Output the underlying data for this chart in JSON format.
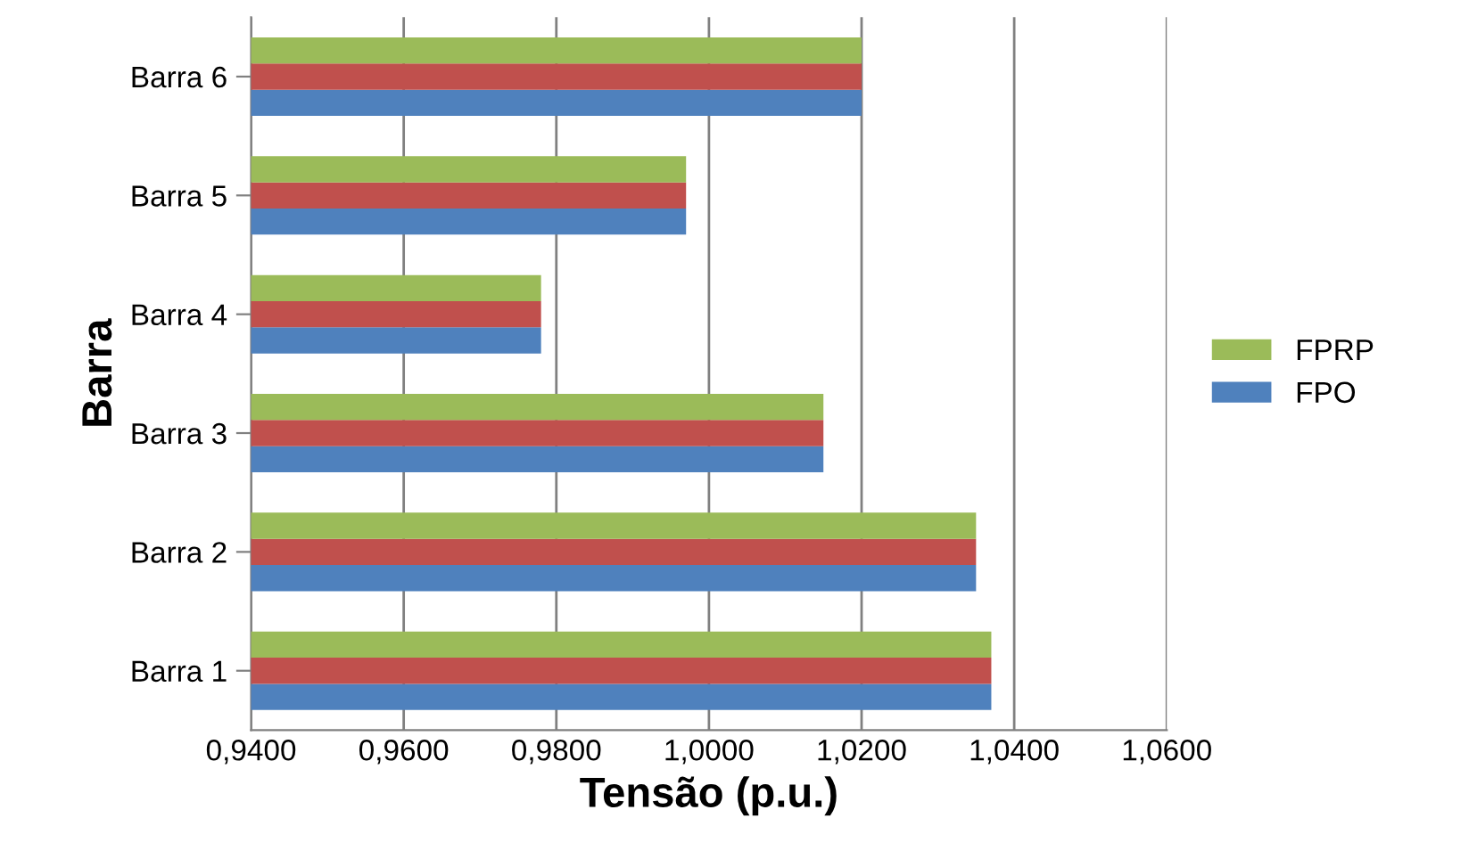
{
  "chart_data": {
    "type": "bar",
    "orientation": "horizontal",
    "xlabel": "Tensão (p.u.)",
    "ylabel": "Barra",
    "categories": [
      "Barra 6",
      "Barra 5",
      "Barra 4",
      "Barra 3",
      "Barra 2",
      "Barra 1"
    ],
    "series": [
      {
        "name": "FPO",
        "color": "#4f81bd",
        "values": [
          1.02,
          0.997,
          0.978,
          1.015,
          1.035,
          1.037
        ]
      },
      {
        "color": "#c0504d",
        "values": [
          1.02,
          0.997,
          0.978,
          1.015,
          1.035,
          1.037
        ]
      },
      {
        "name": "FPRP",
        "color": "#9bbb59",
        "values": [
          1.02,
          0.997,
          0.978,
          1.015,
          1.035,
          1.037
        ]
      }
    ],
    "xlim": [
      0.94,
      1.06
    ],
    "xticks": [
      {
        "value": 0.94,
        "label": "0,9400"
      },
      {
        "value": 0.96,
        "label": "0,9600"
      },
      {
        "value": 0.98,
        "label": "0,9800"
      },
      {
        "value": 1.0,
        "label": "1,0000"
      },
      {
        "value": 1.02,
        "label": "1,0200"
      },
      {
        "value": 1.04,
        "label": "1,0400"
      },
      {
        "value": 1.06,
        "label": "1,0600"
      }
    ],
    "grid": "x",
    "legend": "right"
  }
}
